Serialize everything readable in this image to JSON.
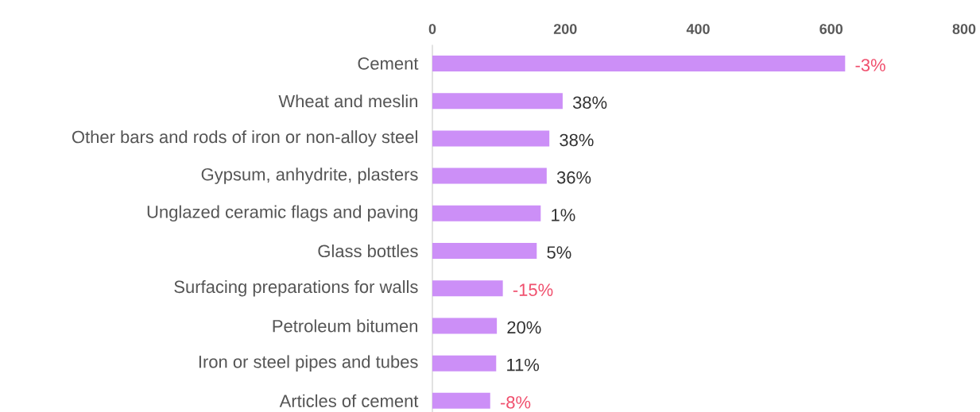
{
  "chart_data": {
    "type": "bar",
    "orientation": "horizontal",
    "categories": [
      "Cement",
      "Wheat and meslin",
      "Other bars and rods of iron or non-alloy steel",
      "Gypsum, anhydrite, plasters",
      "Unglazed ceramic flags and paving",
      "Glass bottles",
      "Surfacing preparations for walls",
      "Petroleum bitumen",
      "Iron or steel pipes and tubes",
      "Articles of cement"
    ],
    "values": [
      621,
      196,
      176,
      172,
      163,
      157,
      106,
      97,
      96,
      87
    ],
    "annotations": [
      {
        "text": "-3%",
        "x": 621,
        "y": "Cement"
      },
      {
        "text": "38%",
        "x": 196,
        "y": "Wheat and meslin"
      },
      {
        "text": "38%",
        "x": 176,
        "y": "Other bars and rods of iron or non-alloy steel"
      },
      {
        "text": "36%",
        "x": 172,
        "y": "Gypsum, anhydrite, plasters"
      },
      {
        "text": "1%",
        "x": 163,
        "y": "Unglazed ceramic flags and paving"
      },
      {
        "text": "5%",
        "x": 157,
        "y": "Glass bottles"
      },
      {
        "text": "-15%",
        "x": 106,
        "y": "Surfacing preparations for walls"
      },
      {
        "text": "20%",
        "x": 97,
        "y": "Petroleum bitumen"
      },
      {
        "text": "11%",
        "x": 96,
        "y": "Iron or steel pipes and tubes"
      },
      {
        "text": "-8%",
        "x": 87,
        "y": "Articles of cement"
      }
    ],
    "color": "#cc8ff7",
    "xlim": [
      0,
      800
    ],
    "xticks": [
      0,
      200,
      400,
      600,
      800
    ],
    "grid": false
  }
}
